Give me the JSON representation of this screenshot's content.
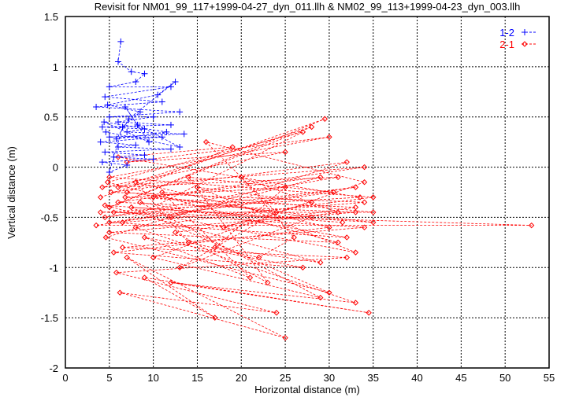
{
  "chart_data": {
    "type": "scatter",
    "title": "Revisit for NM01_99_117+1999-04-27_dyn_011.llh & NM02_99_113+1999-04-23_dyn_003.llh",
    "xlabel": "Horizontal distance (m)",
    "ylabel": "Vertical distance (m)",
    "xlim": [
      0,
      55
    ],
    "ylim": [
      -2,
      1.5
    ],
    "xticks": [
      "0",
      "5",
      "10",
      "15",
      "20",
      "25",
      "30",
      "35",
      "40",
      "45",
      "50",
      "55"
    ],
    "yticks": [
      "-2",
      "-1.5",
      "-1",
      "-0.5",
      "0",
      "0.5",
      "1",
      "1.5"
    ],
    "grid": true,
    "legend_position": "top-right",
    "series": [
      {
        "name": "1-2",
        "color": "#0000ff",
        "marker": "plus",
        "points": [
          [
            6.3,
            1.25
          ],
          [
            6,
            1.05
          ],
          [
            7.5,
            0.95
          ],
          [
            9,
            0.93
          ],
          [
            8,
            0.85
          ],
          [
            5,
            0.8
          ],
          [
            12,
            0.8
          ],
          [
            4.5,
            0.7
          ],
          [
            11,
            0.65
          ],
          [
            3.5,
            0.6
          ],
          [
            13,
            0.55
          ],
          [
            5,
            0.5
          ],
          [
            10,
            0.5
          ],
          [
            6,
            0.45
          ],
          [
            12,
            0.42
          ],
          [
            4.2,
            0.4
          ],
          [
            9,
            0.38
          ],
          [
            7,
            0.35
          ],
          [
            13.5,
            0.33
          ],
          [
            5,
            0.3
          ],
          [
            11,
            0.3
          ],
          [
            4,
            0.25
          ],
          [
            8,
            0.22
          ],
          [
            6,
            0.2
          ],
          [
            12,
            0.18
          ],
          [
            4.5,
            0.15
          ],
          [
            9,
            0.12
          ],
          [
            5.5,
            0.1
          ],
          [
            10,
            0.08
          ],
          [
            4.2,
            0.05
          ],
          [
            7,
            0.02
          ],
          [
            5,
            -0.05
          ],
          [
            6.5,
            0.4
          ],
          [
            8.5,
            0.55
          ],
          [
            4.8,
            0.62
          ],
          [
            10.5,
            0.72
          ],
          [
            12.5,
            0.85
          ],
          [
            7.2,
            0.48
          ],
          [
            5.8,
            0.28
          ],
          [
            11.5,
            0.35
          ],
          [
            4.4,
            0.45
          ],
          [
            9.5,
            0.25
          ],
          [
            6.8,
            0.6
          ],
          [
            8.2,
            0.42
          ],
          [
            13,
            0.2
          ],
          [
            4.6,
            0.35
          ]
        ]
      },
      {
        "name": "2-1",
        "color": "#ff0000",
        "marker": "diamond",
        "points": [
          [
            4,
            -0.3
          ],
          [
            29.5,
            0.48
          ],
          [
            5,
            -0.4
          ],
          [
            28,
            0.4
          ],
          [
            6,
            -0.2
          ],
          [
            31,
            -0.1
          ],
          [
            4.5,
            -0.5
          ],
          [
            33,
            -0.2
          ],
          [
            3.5,
            -0.58
          ],
          [
            53,
            -0.58
          ],
          [
            5.5,
            -0.45
          ],
          [
            34,
            -0.6
          ],
          [
            6.5,
            -0.8
          ],
          [
            32,
            -0.9
          ],
          [
            5.8,
            -1.05
          ],
          [
            24,
            -1.45
          ],
          [
            6.2,
            -1.25
          ],
          [
            25,
            -1.7
          ],
          [
            7,
            -0.9
          ],
          [
            17,
            -1.5
          ],
          [
            9,
            -1.1
          ],
          [
            34.5,
            -1.45
          ],
          [
            12,
            -1.15
          ],
          [
            33,
            -1.35
          ],
          [
            8,
            -0.6
          ],
          [
            35,
            -0.3
          ],
          [
            5,
            -0.1
          ],
          [
            30,
            0.3
          ],
          [
            7,
            0.05
          ],
          [
            25,
            0.15
          ],
          [
            4.2,
            -0.2
          ],
          [
            34,
            0
          ],
          [
            6,
            -0.35
          ],
          [
            33,
            -0.45
          ],
          [
            5,
            -0.65
          ],
          [
            31,
            -0.75
          ],
          [
            4.8,
            -0.15
          ],
          [
            27,
            0.35
          ],
          [
            6.5,
            -0.55
          ],
          [
            34,
            -0.35
          ],
          [
            5.2,
            -0.25
          ],
          [
            32,
            0.05
          ],
          [
            4.6,
            -0.7
          ],
          [
            30,
            -1.25
          ],
          [
            7.5,
            -0.4
          ],
          [
            35,
            -0.55
          ],
          [
            10,
            -0.3
          ],
          [
            29,
            -0.1
          ],
          [
            12,
            -0.5
          ],
          [
            33,
            -0.85
          ],
          [
            15,
            -0.2
          ],
          [
            28,
            -0.35
          ],
          [
            18,
            -0.6
          ],
          [
            31,
            -0.45
          ],
          [
            20,
            -0.1
          ],
          [
            26,
            -0.7
          ],
          [
            22,
            -0.9
          ],
          [
            14,
            -0.75
          ],
          [
            8,
            -0.15
          ],
          [
            30,
            -0.6
          ],
          [
            5.5,
            -0.85
          ],
          [
            27,
            -1.0
          ],
          [
            9,
            -0.7
          ],
          [
            21,
            -1.1
          ],
          [
            11,
            -0.25
          ],
          [
            35,
            -0.45
          ],
          [
            4,
            -0.45
          ],
          [
            33.5,
            -0.3
          ],
          [
            6,
            0.1
          ],
          [
            19,
            0.2
          ],
          [
            7,
            -0.25
          ],
          [
            28,
            -0.5
          ],
          [
            13,
            -1.0
          ],
          [
            24,
            -0.45
          ],
          [
            16,
            0.25
          ],
          [
            34,
            -0.15
          ],
          [
            10,
            -0.9
          ],
          [
            29,
            -1.3
          ],
          [
            8.5,
            -0.35
          ],
          [
            32,
            -0.7
          ],
          [
            5,
            -0.55
          ],
          [
            30.5,
            -0.25
          ],
          [
            14,
            -0.1
          ],
          [
            23,
            -1.15
          ],
          [
            12.5,
            -0.65
          ],
          [
            33,
            -0.4
          ],
          [
            6.8,
            -0.3
          ],
          [
            25,
            -0.2
          ],
          [
            17,
            -0.8
          ],
          [
            29,
            -0.95
          ],
          [
            4.5,
            -0.38
          ],
          [
            31.5,
            -0.55
          ]
        ]
      }
    ]
  }
}
